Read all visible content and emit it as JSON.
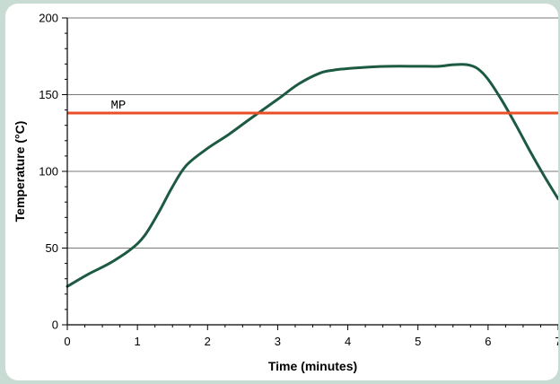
{
  "chart_data": {
    "type": "line",
    "title": "",
    "xlabel": "Time (minutes)",
    "ylabel": "Temperature (°C)",
    "xlim": [
      0,
      7
    ],
    "ylim": [
      0,
      200
    ],
    "x_ticks": [
      "0",
      "1",
      "2",
      "3",
      "4",
      "5",
      "6",
      "7"
    ],
    "y_ticks": [
      "0",
      "50",
      "100",
      "150",
      "200"
    ],
    "grid": "horizontal",
    "series": [
      {
        "color": "#1d5a42",
        "x": [
          0,
          0.3,
          0.6,
          0.9,
          1.1,
          1.3,
          1.5,
          1.7,
          2.0,
          2.3,
          2.6,
          3.0,
          3.3,
          3.6,
          3.8,
          4.0,
          4.3,
          4.6,
          5.0,
          5.3,
          5.5,
          5.7,
          5.85,
          6.0,
          6.2,
          6.4,
          6.6,
          6.8,
          7.0
        ],
        "y": [
          25,
          33,
          40,
          49,
          58,
          73,
          90,
          104,
          115,
          124,
          134,
          147,
          157,
          164,
          166,
          167,
          168,
          168.5,
          168.5,
          168.5,
          169.5,
          169.5,
          167,
          160,
          146,
          130,
          113,
          97,
          82
        ]
      }
    ],
    "reference_lines": [
      {
        "label": "MP",
        "y": 138,
        "color": "#e8502a"
      }
    ]
  }
}
